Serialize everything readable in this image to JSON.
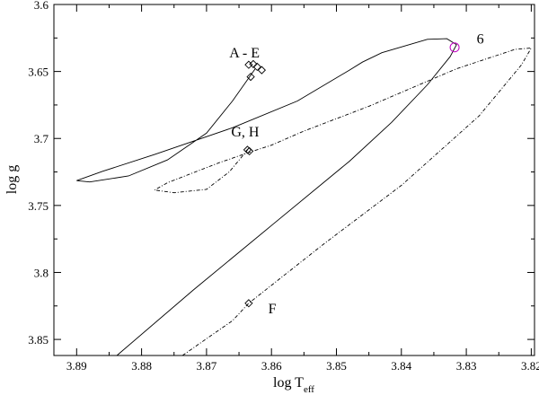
{
  "chart_data": {
    "type": "line",
    "title": "",
    "xlabel": {
      "main": "log T",
      "sub": "eff"
    },
    "ylabel": "log g",
    "xlim": [
      3.8935,
      3.8195
    ],
    "ylim": [
      3.6,
      3.862
    ],
    "x_reversed": true,
    "y_reversed": true,
    "grid": false,
    "legend": "none",
    "x_ticks": [
      3.89,
      3.88,
      3.87,
      3.86,
      3.85,
      3.84,
      3.83,
      3.82
    ],
    "x_tick_labels": [
      "3.89",
      "3.88",
      "3.87",
      "3.86",
      "3.85",
      "3.84",
      "3.83",
      "3.82"
    ],
    "y_ticks": [
      3.6,
      3.65,
      3.7,
      3.75,
      3.8,
      3.85
    ],
    "y_tick_labels": [
      "3.6",
      "3.65",
      "3.7",
      "3.75",
      "3.8",
      "3.85"
    ],
    "series": [
      {
        "style": "solid",
        "points": [
          [
            3.8838,
            3.862
          ],
          [
            3.872,
            3.813
          ],
          [
            3.86,
            3.765
          ],
          [
            3.848,
            3.717
          ],
          [
            3.8415,
            3.688
          ],
          [
            3.836,
            3.66
          ],
          [
            3.8325,
            3.639
          ],
          [
            3.8315,
            3.63
          ],
          [
            3.833,
            3.6255
          ],
          [
            3.836,
            3.626
          ],
          [
            3.843,
            3.636
          ],
          [
            3.846,
            3.643
          ],
          [
            3.848,
            3.649
          ],
          [
            3.856,
            3.672
          ],
          [
            3.866,
            3.692
          ],
          [
            3.878,
            3.712
          ],
          [
            3.886,
            3.7245
          ],
          [
            3.89,
            3.7315
          ],
          [
            3.888,
            3.7325
          ],
          [
            3.882,
            3.728
          ],
          [
            3.876,
            3.716
          ],
          [
            3.87,
            3.696
          ],
          [
            3.866,
            3.672
          ],
          [
            3.8625,
            3.648
          ]
        ]
      },
      {
        "style": "dashed",
        "points": [
          [
            3.8737,
            3.862
          ],
          [
            3.866,
            3.836
          ],
          [
            3.8635,
            3.823
          ],
          [
            3.852,
            3.779
          ],
          [
            3.84,
            3.735
          ],
          [
            3.828,
            3.683
          ],
          [
            3.8215,
            3.645
          ],
          [
            3.82,
            3.6325
          ],
          [
            3.8225,
            3.6335
          ],
          [
            3.8315,
            3.648
          ],
          [
            3.845,
            3.676
          ],
          [
            3.855,
            3.6945
          ],
          [
            3.86,
            3.705
          ],
          [
            3.8635,
            3.7105
          ],
          [
            3.868,
            3.718
          ],
          [
            3.876,
            3.733
          ],
          [
            3.878,
            3.7385
          ],
          [
            3.875,
            3.7405
          ],
          [
            3.87,
            3.738
          ],
          [
            3.8665,
            3.725
          ],
          [
            3.8636,
            3.708
          ]
        ]
      }
    ],
    "markers": [
      {
        "name": "A - E",
        "shape": "diamond",
        "color": "#000000",
        "points": [
          [
            3.8635,
            3.645
          ],
          [
            3.8628,
            3.6445
          ],
          [
            3.8622,
            3.6465
          ],
          [
            3.8615,
            3.649
          ],
          [
            3.8632,
            3.654
          ]
        ]
      },
      {
        "name": "G, H",
        "shape": "diamond",
        "color": "#000000",
        "points": [
          [
            3.8637,
            3.7085
          ],
          [
            3.8634,
            3.7095
          ]
        ]
      },
      {
        "name": "F",
        "shape": "diamond",
        "color": "#000000",
        "points": [
          [
            3.8635,
            3.823
          ]
        ]
      },
      {
        "name": "6",
        "shape": "circle",
        "color": "#c000c0",
        "points": [
          [
            3.8318,
            3.632
          ]
        ]
      }
    ],
    "annotations": [
      {
        "text": "A - E",
        "x": 3.8665,
        "y": 3.6395
      },
      {
        "text": "G, H",
        "x": 3.8662,
        "y": 3.6985
      },
      {
        "text": "F",
        "x": 3.8605,
        "y": 3.8305
      },
      {
        "text": "6",
        "x": 3.8284,
        "y": 3.629
      }
    ]
  }
}
